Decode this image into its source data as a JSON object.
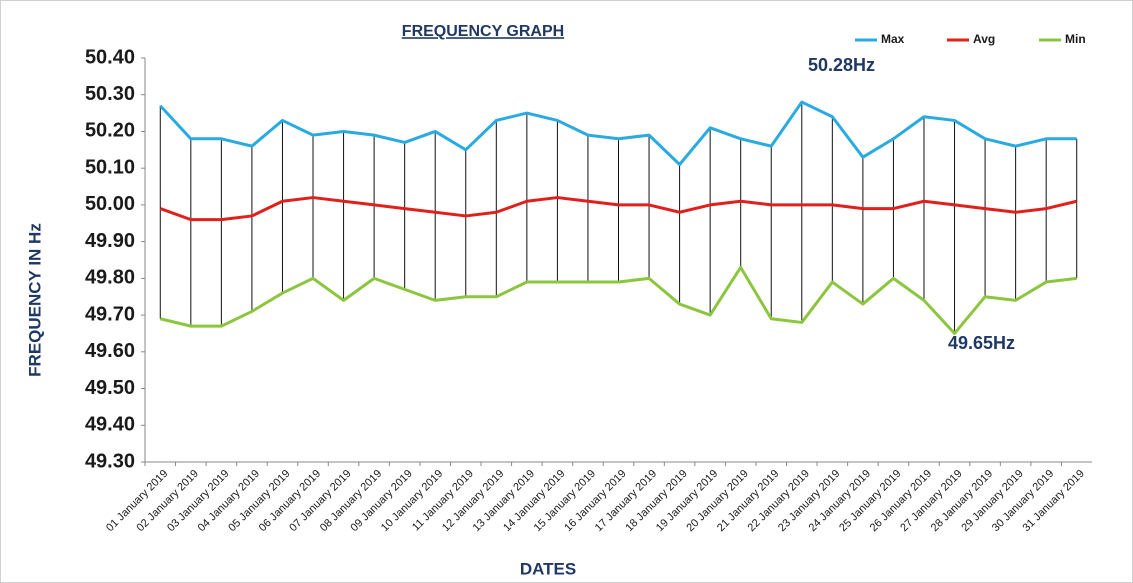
{
  "chart_data": {
    "type": "line",
    "title": "FREQUENCY GRAPH",
    "x_label": "DATES",
    "y_label": "FREQUENCY IN Hz",
    "annotations": [
      "50.28Hz",
      "49.65Hz"
    ],
    "categories": [
      "01 January 2019",
      "02 January 2019",
      "03 January 2019",
      "04 January 2019",
      "05 January 2019",
      "06 January 2019",
      "07 January 2019",
      "08 January 2019",
      "09 January 2019",
      "10 January 2019",
      "11 January 2019",
      "12 January 2019",
      "13 January 2019",
      "14 January 2019",
      "15 January 2019",
      "16 January 2019",
      "17 January 2019",
      "18 January 2019",
      "19 January 2019",
      "20 January 2019",
      "21 January 2019",
      "22 January 2019",
      "23 January 2019",
      "24 January 2019",
      "25 January 2019",
      "26 January 2019",
      "27 January 2019",
      "28 January 2019",
      "29 January 2019",
      "30 January 2019",
      "31 January 2019"
    ],
    "series": [
      {
        "name": "Max",
        "color": "#29abe2",
        "values": [
          50.27,
          50.18,
          50.18,
          50.16,
          50.23,
          50.19,
          50.2,
          50.19,
          50.17,
          50.2,
          50.15,
          50.23,
          50.25,
          50.23,
          50.19,
          50.18,
          50.19,
          50.11,
          50.21,
          50.18,
          50.16,
          50.28,
          50.24,
          50.13,
          50.18,
          50.24,
          50.23,
          50.18,
          50.16,
          50.18,
          50.18
        ]
      },
      {
        "name": "Avg",
        "color": "#e0201b",
        "values": [
          49.99,
          49.96,
          49.96,
          49.97,
          50.01,
          50.02,
          50.01,
          50.0,
          49.99,
          49.98,
          49.97,
          49.98,
          50.01,
          50.02,
          50.01,
          50.0,
          50.0,
          49.98,
          50.0,
          50.01,
          50.0,
          50.0,
          50.0,
          49.99,
          49.99,
          50.01,
          50.0,
          49.99,
          49.98,
          49.99,
          50.01
        ]
      },
      {
        "name": "Min",
        "color": "#8cc63f",
        "values": [
          49.69,
          49.67,
          49.67,
          49.71,
          49.76,
          49.8,
          49.74,
          49.8,
          49.77,
          49.74,
          49.75,
          49.75,
          49.79,
          49.79,
          49.79,
          49.79,
          49.8,
          49.73,
          49.7,
          49.83,
          49.69,
          49.68,
          49.79,
          49.73,
          49.8,
          49.74,
          49.65,
          49.75,
          49.74,
          49.79,
          49.8
        ]
      }
    ],
    "high_low_lines": true,
    "ylim": [
      49.3,
      50.4
    ],
    "yticks": [
      {
        "value": 49.3,
        "label": "49.30"
      },
      {
        "value": 49.4,
        "label": "49.40"
      },
      {
        "value": 49.5,
        "label": "49.50"
      },
      {
        "value": 49.6,
        "label": "49.60"
      },
      {
        "value": 49.7,
        "label": "49.70"
      },
      {
        "value": 49.8,
        "label": "49.80"
      },
      {
        "value": 49.9,
        "label": "49.90"
      },
      {
        "value": 50.0,
        "label": "50.00"
      },
      {
        "value": 50.1,
        "label": "50.10"
      },
      {
        "value": 50.2,
        "label": "50.20"
      },
      {
        "value": 50.3,
        "label": "50.30"
      },
      {
        "value": 50.4,
        "label": "50.40"
      }
    ],
    "grid": false,
    "legend": "top-right"
  }
}
